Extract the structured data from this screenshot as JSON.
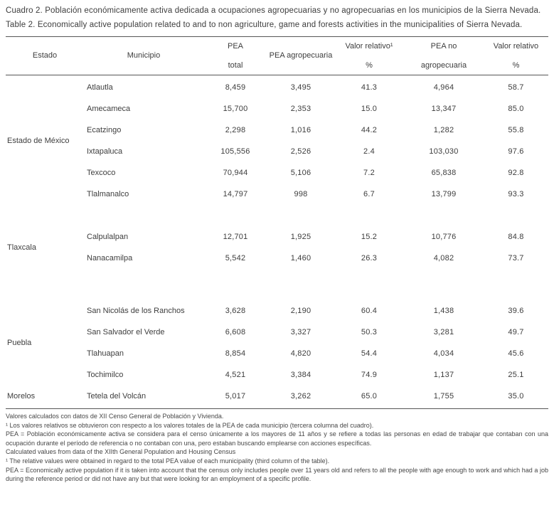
{
  "titles": {
    "spanish": "Cuadro 2. Población económicamente activa dedicada a ocupaciones agropecuarias y no agropecuarias en los municipios de la Sierra Nevada.",
    "english": "Table 2. Economically active population related to and to non agriculture, game and forests activities in the municipalities of Sierra Nevada."
  },
  "table": {
    "headers": {
      "estado": "Estado",
      "municipio": "Municipio",
      "pea_total_l1": "PEA",
      "pea_total_l2": "total",
      "pea_agropecuaria": "PEA agropecuaria",
      "valor_relativo_l1": "Valor relativo¹",
      "valor_relativo_l2": "%",
      "pea_no_l1": "PEA no",
      "pea_no_l2": "agropecuaria",
      "valor_relativo2_l1": "Valor relativo",
      "valor_relativo2_l2": "%"
    },
    "groups": [
      {
        "estado": "Estado de México",
        "rows": [
          {
            "municipio": "Atlautla",
            "pea_total": "8,459",
            "pea_agropecuaria": "3,495",
            "valor_relativo": "41.3",
            "pea_no_agropecuaria": "4,964",
            "valor_relativo_no": "58.7"
          },
          {
            "municipio": "Amecameca",
            "pea_total": "15,700",
            "pea_agropecuaria": "2,353",
            "valor_relativo": "15.0",
            "pea_no_agropecuaria": "13,347",
            "valor_relativo_no": "85.0"
          },
          {
            "municipio": "Ecatzingo",
            "pea_total": "2,298",
            "pea_agropecuaria": "1,016",
            "valor_relativo": "44.2",
            "pea_no_agropecuaria": "1,282",
            "valor_relativo_no": "55.8"
          },
          {
            "municipio": "Ixtapaluca",
            "pea_total": "105,556",
            "pea_agropecuaria": "2,526",
            "valor_relativo": "2.4",
            "pea_no_agropecuaria": "103,030",
            "valor_relativo_no": "97.6"
          },
          {
            "municipio": "Texcoco",
            "pea_total": "70,944",
            "pea_agropecuaria": "5,106",
            "valor_relativo": "7.2",
            "pea_no_agropecuaria": "65,838",
            "valor_relativo_no": "92.8"
          },
          {
            "municipio": "Tlalmanalco",
            "pea_total": "14,797",
            "pea_agropecuaria": "998",
            "valor_relativo": "6.7",
            "pea_no_agropecuaria": "13,799",
            "valor_relativo_no": "93.3"
          }
        ]
      },
      {
        "estado": "Tlaxcala",
        "rows": [
          {
            "municipio": "Calpulalpan",
            "pea_total": "12,701",
            "pea_agropecuaria": "1,925",
            "valor_relativo": "15.2",
            "pea_no_agropecuaria": "10,776",
            "valor_relativo_no": "84.8"
          },
          {
            "municipio": "Nanacamilpa",
            "pea_total": "5,542",
            "pea_agropecuaria": "1,460",
            "valor_relativo": "26.3",
            "pea_no_agropecuaria": "4,082",
            "valor_relativo_no": "73.7"
          }
        ]
      },
      {
        "estado": "Puebla",
        "rows": [
          {
            "municipio": "San Nicolás de los Ranchos",
            "pea_total": "3,628",
            "pea_agropecuaria": "2,190",
            "valor_relativo": "60.4",
            "pea_no_agropecuaria": "1,438",
            "valor_relativo_no": "39.6"
          },
          {
            "municipio": "San Salvador el Verde",
            "pea_total": "6,608",
            "pea_agropecuaria": "3,327",
            "valor_relativo": "50.3",
            "pea_no_agropecuaria": "3,281",
            "valor_relativo_no": "49.7"
          },
          {
            "municipio": "Tlahuapan",
            "pea_total": "8,854",
            "pea_agropecuaria": "4,820",
            "valor_relativo": "54.4",
            "pea_no_agropecuaria": "4,034",
            "valor_relativo_no": "45.6"
          },
          {
            "municipio": "Tochimilco",
            "pea_total": "4,521",
            "pea_agropecuaria": "3,384",
            "valor_relativo": "74.9",
            "pea_no_agropecuaria": "1,137",
            "valor_relativo_no": "25.1"
          }
        ]
      },
      {
        "estado": "Morelos",
        "rows": [
          {
            "municipio": "Tetela del Volcán",
            "pea_total": "5,017",
            "pea_agropecuaria": "3,262",
            "valor_relativo": "65.0",
            "pea_no_agropecuaria": "1,755",
            "valor_relativo_no": "35.0"
          }
        ]
      }
    ]
  },
  "footnotes": [
    "Valores calculados con datos de XII Censo General de Población y Vivienda.",
    "¹ Los valores relativos se obtuvieron con respecto a los valores totales de la PEA de cada municipio  (tercera columna del cuadro).",
    "PEA = Población económicamente activa se considera para el censo únicamente a los mayores de 11 años y se refiere a todas las personas en edad de trabajar que contaban con una ocupación durante el período de referencia o no contaban con una, pero estaban buscando emplearse con acciones específicas.",
    "Calculated values from data of the XIIth General Population and Housing Census",
    "¹ The relative values were obtained in regard to the total PEA value of each municipality (third column of the table).",
    "PEA = Economically active population if it is taken into account that the census only includes people over 11 years old and refers to all the people with age enough to work and which had a job during the reference period or did not have any but that were looking for an employment of a specific profile."
  ]
}
